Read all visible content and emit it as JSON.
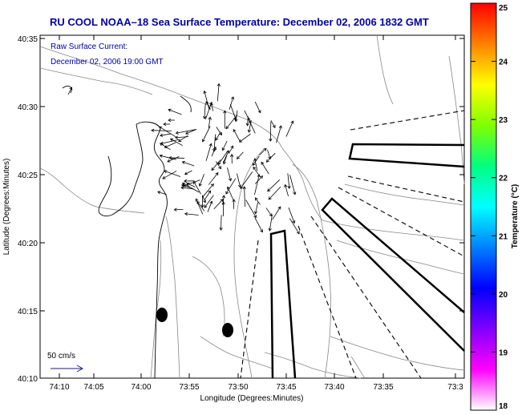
{
  "title": "RU COOL  NOAA–18  Sea Surface Temperature:  December 02, 2006 1832 GMT",
  "current_label_line1": "Raw Surface Current:",
  "current_label_line2": "December 02, 2006 19:00 GMT",
  "scale_label": "50 cm/s",
  "xlabel": "Longitude (Degrees:Minutes)",
  "ylabel": "Latitude (Degrees:Minutes)",
  "x_ticks": [
    "74:10",
    "74:05",
    "74:00",
    "73:55",
    "73:50",
    "73:45",
    "73:40",
    "73:35",
    "73:3"
  ],
  "y_ticks": [
    "40:35",
    "40:30",
    "40:25",
    "40:20",
    "40:15",
    "40:10"
  ],
  "colorbar": {
    "label": "Temperature (°C)",
    "ticks": [
      "25",
      "24",
      "23",
      "22",
      "21",
      "20",
      "19",
      "18"
    ],
    "colors": [
      "#ff0000",
      "#ff8000",
      "#ffff00",
      "#80ff00",
      "#00ff80",
      "#00ffff",
      "#0080ff",
      "#0000ff",
      "#8000ff",
      "#ff00ff",
      "#ffffff"
    ]
  }
}
